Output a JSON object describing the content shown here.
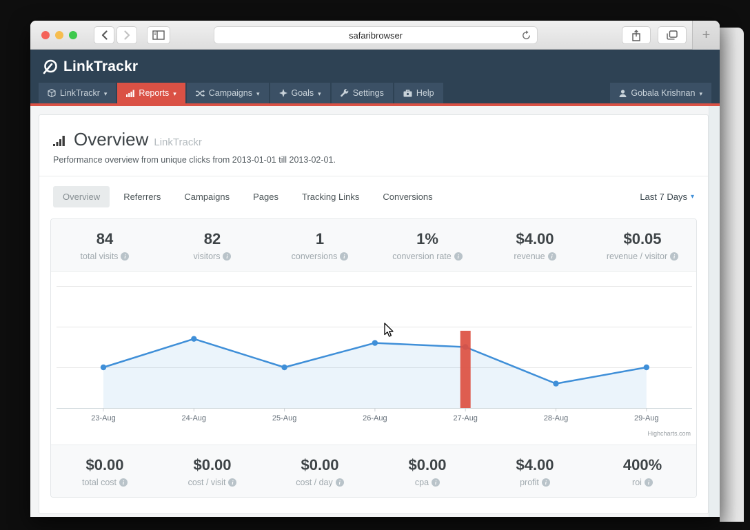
{
  "colors": {
    "navbar_bg": "#2e4254",
    "nav_item_bg": "#3b5065",
    "accent_red": "#da5145",
    "chart_blue": "#3f8fd8",
    "chart_area": "rgba(63,143,216,0.10)",
    "bar_red": "#dc4f41"
  },
  "browser": {
    "url_text": "safaribrowser",
    "new_tab_label": "+"
  },
  "brand": {
    "logo_text": "LinkTrackr"
  },
  "nav": {
    "items": [
      {
        "label": "LinkTrackr",
        "caret": "▾"
      },
      {
        "label": "Reports",
        "caret": "▾",
        "active": true
      },
      {
        "label": "Campaigns",
        "caret": "▾"
      },
      {
        "label": "Goals",
        "caret": "▾"
      },
      {
        "label": "Settings"
      },
      {
        "label": "Help"
      }
    ],
    "user": {
      "label": "Gobala Krishnan",
      "caret": "▾"
    }
  },
  "header": {
    "title": "Overview",
    "title_suffix": "LinkTrackr",
    "subtitle": "Performance overview from unique clicks from 2013-01-01 till 2013-02-01."
  },
  "tabs": {
    "items": [
      {
        "label": "Overview",
        "active": true
      },
      {
        "label": "Referrers"
      },
      {
        "label": "Campaigns"
      },
      {
        "label": "Pages"
      },
      {
        "label": "Tracking Links"
      },
      {
        "label": "Conversions"
      }
    ],
    "period_label": "Last 7 Days",
    "period_caret": "▾"
  },
  "stats_top": {
    "items": [
      {
        "value": "84",
        "label": "total visits"
      },
      {
        "value": "82",
        "label": "visitors"
      },
      {
        "value": "1",
        "label": "conversions"
      },
      {
        "value": "1%",
        "label": "conversion rate"
      },
      {
        "value": "$4.00",
        "label": "revenue"
      },
      {
        "value": "$0.05",
        "label": "revenue / visitor"
      }
    ]
  },
  "stats_bottom": {
    "items": [
      {
        "value": "$0.00",
        "label": "total cost"
      },
      {
        "value": "$0.00",
        "label": "cost / visit"
      },
      {
        "value": "$0.00",
        "label": "cost / day"
      },
      {
        "value": "$0.00",
        "label": "cpa"
      },
      {
        "value": "$4.00",
        "label": "profit"
      },
      {
        "value": "400%",
        "label": "roi"
      }
    ]
  },
  "chart_data": {
    "type": "line",
    "categories": [
      "23-Aug",
      "24-Aug",
      "25-Aug",
      "26-Aug",
      "27-Aug",
      "28-Aug",
      "29-Aug"
    ],
    "series": [
      {
        "name": "visits",
        "type": "line",
        "color": "#3f8fd8",
        "values": [
          10,
          17,
          10,
          16,
          15,
          6,
          10
        ]
      },
      {
        "name": "highlight-bar",
        "type": "bar",
        "color": "#dc4f41",
        "category": "27-Aug",
        "axis_value": 19
      }
    ],
    "ylim": [
      0,
      30
    ],
    "gridlines": [
      10,
      20,
      30
    ],
    "grid": true,
    "legend": "none",
    "title": "",
    "xlabel": "",
    "ylabel": "",
    "credits": "Highcharts.com"
  }
}
